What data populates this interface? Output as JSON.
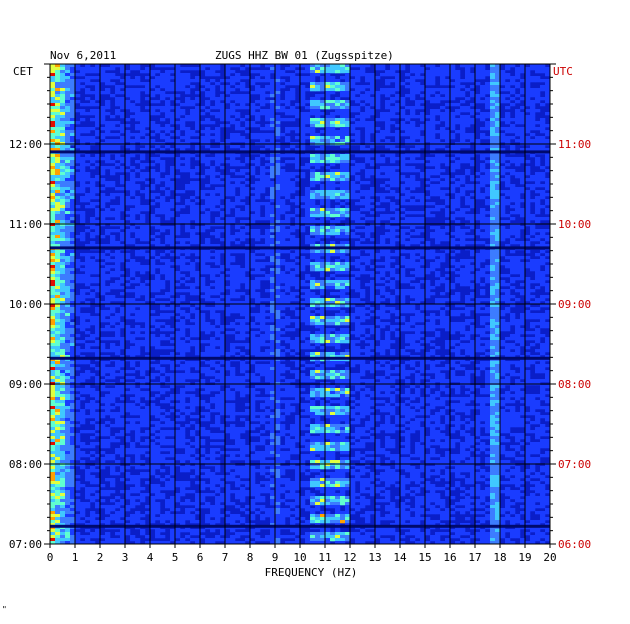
{
  "header": {
    "date": "Nov 6,2011",
    "station": "ZUGS HHZ BW 01 (Zugsspitze)",
    "left_tz": "CET",
    "right_tz": "UTC",
    "corner_mark": "\""
  },
  "colors": {
    "background_blue": "#0a1ec8",
    "deep_blue": "#000a6e",
    "utc_label": "#cc0000",
    "grid": "#000000"
  },
  "chart_data": {
    "type": "heatmap",
    "subtype": "spectrogram",
    "title": "ZUGS HHZ BW 01 (Zugsspitze)",
    "xlabel": "FREQUENCY (HZ)",
    "ylabel": "",
    "xlim": [
      0,
      20
    ],
    "x_ticks": [
      "0",
      "1",
      "2",
      "3",
      "4",
      "5",
      "6",
      "7",
      "8",
      "9",
      "10",
      "11",
      "12",
      "13",
      "14",
      "15",
      "16",
      "17",
      "18",
      "19",
      "20"
    ],
    "y_ticks_left": [
      "12:00",
      "11:00",
      "10:00",
      "09:00",
      "08:00",
      "07:00"
    ],
    "y_ticks_right": [
      "11:00",
      "10:00",
      "09:00",
      "08:00",
      "07:00",
      "06:00"
    ],
    "y_ticks_hours_from_bottom": [
      5,
      4,
      3,
      2,
      1,
      0
    ],
    "time_span_hours": 6,
    "grid": true,
    "features": [
      {
        "name": "low-frequency noise",
        "freq_range": [
          0.0,
          1.0
        ],
        "intensity": "high"
      },
      {
        "name": "tonal band",
        "freq_range": [
          10.5,
          12.0
        ],
        "intensity": "medium"
      },
      {
        "name": "narrow line",
        "freq_range": [
          17.7,
          17.9
        ],
        "intensity": "medium"
      },
      {
        "name": "band",
        "freq_range": [
          8.8,
          9.2
        ],
        "intensity": "low"
      }
    ]
  }
}
